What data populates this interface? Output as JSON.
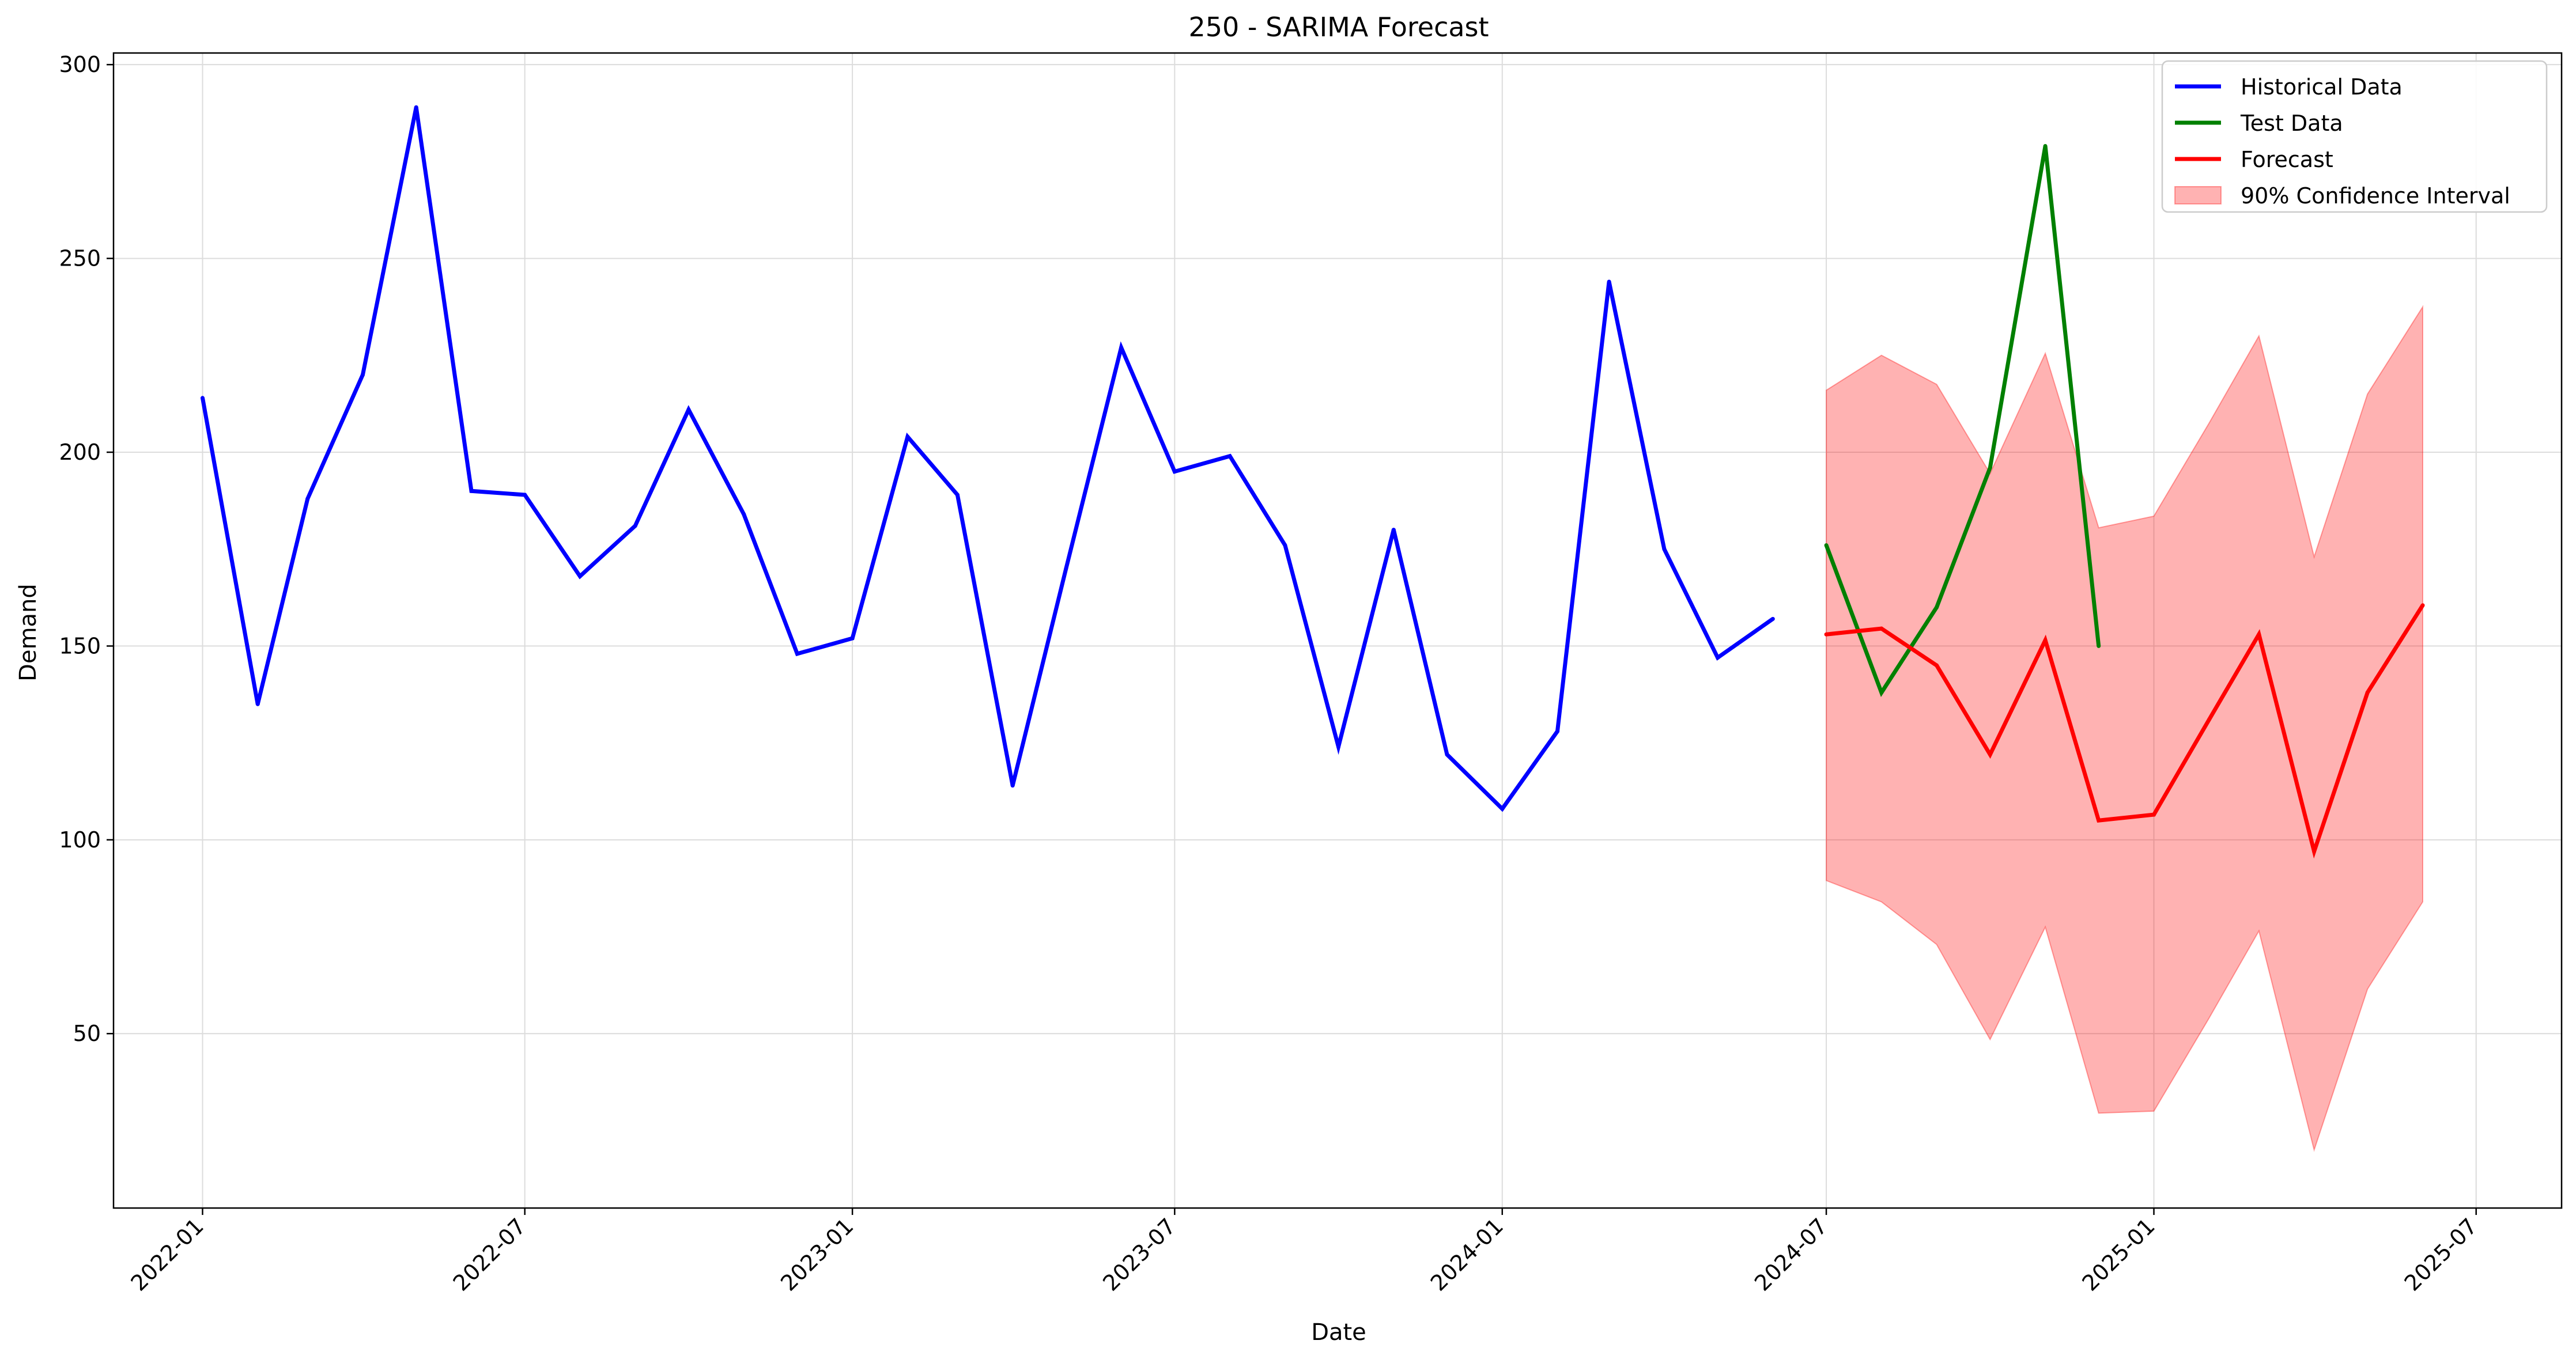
{
  "chart_data": {
    "type": "line",
    "title": "250 - SARIMA Forecast",
    "xlabel": "Date",
    "ylabel": "Demand",
    "x_ticks": [
      "2022-01",
      "2022-07",
      "2023-01",
      "2023-07",
      "2024-01",
      "2024-07",
      "2025-01",
      "2025-07"
    ],
    "y_ticks": [
      50,
      100,
      150,
      200,
      250,
      300
    ],
    "xlim": [
      "2021-11-12",
      "2025-08-18"
    ],
    "ylim": [
      5,
      303
    ],
    "grid": true,
    "legend_position": "top-right",
    "series": [
      {
        "name": "Historical Data",
        "color": "#0000ff",
        "x": [
          "2022-01-01",
          "2022-02-01",
          "2022-03-01",
          "2022-04-01",
          "2022-05-01",
          "2022-06-01",
          "2022-07-01",
          "2022-08-01",
          "2022-09-01",
          "2022-10-01",
          "2022-11-01",
          "2022-12-01",
          "2023-01-01",
          "2023-02-01",
          "2023-03-01",
          "2023-04-01",
          "2023-05-01",
          "2023-06-01",
          "2023-07-01",
          "2023-08-01",
          "2023-09-01",
          "2023-10-01",
          "2023-11-01",
          "2023-12-01",
          "2024-01-01",
          "2024-02-01",
          "2024-03-01",
          "2024-04-01",
          "2024-05-01",
          "2024-06-01"
        ],
        "values": [
          214,
          135,
          188,
          220,
          289,
          190,
          189,
          168,
          181,
          211,
          184,
          148,
          152,
          204,
          189,
          114,
          170,
          227,
          195,
          199,
          176,
          124,
          180,
          122,
          108,
          128,
          244,
          175,
          147,
          157
        ]
      },
      {
        "name": "Test Data",
        "color": "#008000",
        "x": [
          "2024-07-01",
          "2024-08-01",
          "2024-09-01",
          "2024-10-01",
          "2024-11-01",
          "2024-12-01"
        ],
        "values": [
          176,
          138,
          160,
          196,
          279,
          150
        ]
      },
      {
        "name": "Forecast",
        "color": "#ff0000",
        "x": [
          "2024-07-01",
          "2024-08-01",
          "2024-09-01",
          "2024-10-01",
          "2024-11-01",
          "2024-12-01",
          "2025-01-01",
          "2025-02-01",
          "2025-03-01",
          "2025-04-01",
          "2025-05-01",
          "2025-06-01"
        ],
        "values": [
          153,
          154.5,
          145,
          122,
          151.5,
          105,
          106.5,
          131,
          153,
          97,
          138,
          160.5
        ]
      }
    ],
    "confidence_interval": {
      "name": "90% Confidence Interval",
      "color": "#ff0000",
      "opacity": 0.3,
      "x": [
        "2024-07-01",
        "2024-08-01",
        "2024-09-01",
        "2024-10-01",
        "2024-11-01",
        "2024-12-01",
        "2025-01-01",
        "2025-02-01",
        "2025-03-01",
        "2025-04-01",
        "2025-05-01",
        "2025-06-01"
      ],
      "lower": [
        89.5,
        84,
        73,
        48.5,
        77.5,
        29.5,
        30,
        54,
        76.5,
        20,
        61.5,
        84
      ],
      "upper": [
        216,
        225,
        217.5,
        194.5,
        225.5,
        180.5,
        183.5,
        207.5,
        230,
        173,
        215,
        237.5
      ]
    }
  }
}
